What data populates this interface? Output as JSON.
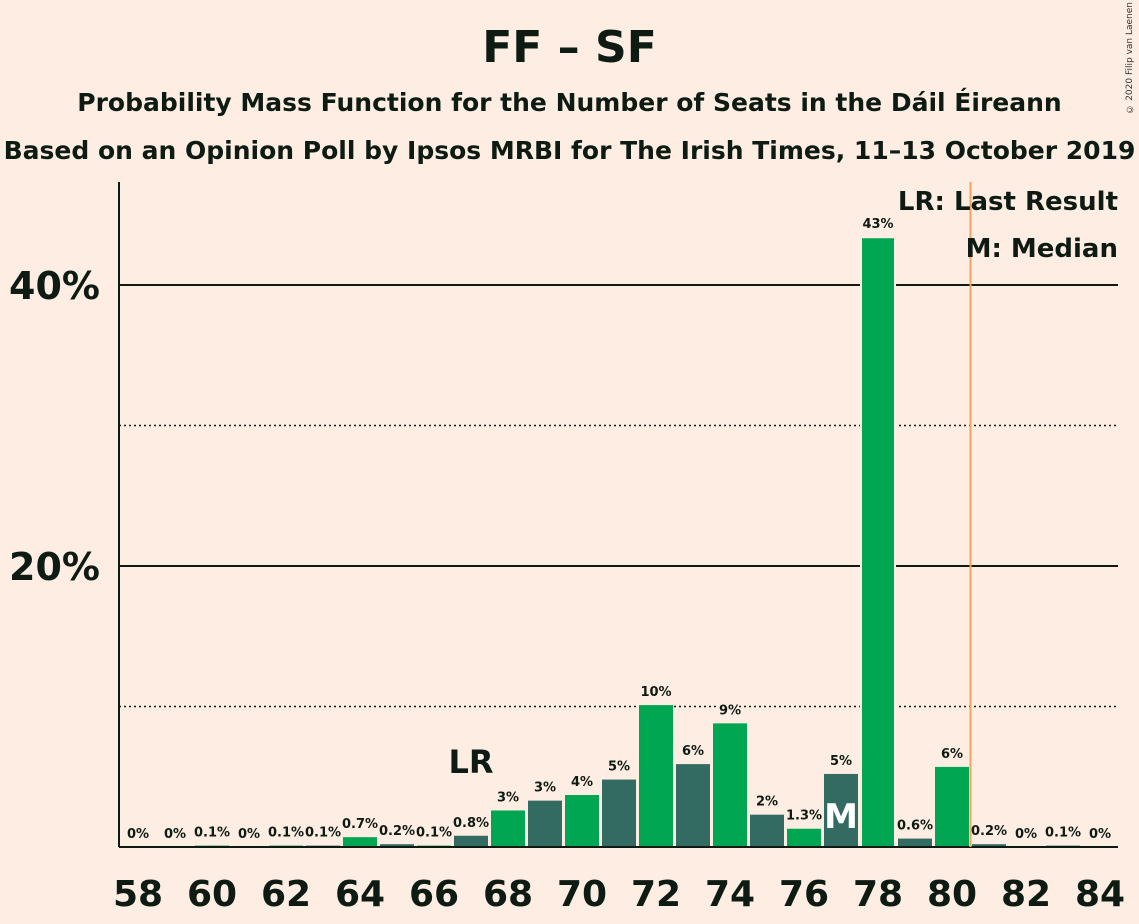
{
  "header": {
    "title": "FF – SF",
    "subtitle1": "Probability Mass Function for the Number of Seats in the Dáil Éireann",
    "subtitle2": "Based on an Opinion Poll by Ipsos MRBI for The Irish Times, 11–13 October 2019",
    "copyright": "© 2020 Filip van Laenen"
  },
  "legend": {
    "last_result": "LR: Last Result",
    "median": "M: Median"
  },
  "colors": {
    "background": "#FEEDE2",
    "bar_green": "#00A651",
    "bar_teal": "#336B63",
    "majority_line": "#F4A460",
    "text": "#0D1B12"
  },
  "chart_data": {
    "type": "bar",
    "x": [
      58,
      59,
      60,
      61,
      62,
      63,
      64,
      65,
      66,
      67,
      68,
      69,
      70,
      71,
      72,
      73,
      74,
      75,
      76,
      77,
      78,
      79,
      80,
      81,
      82,
      83,
      84
    ],
    "values": [
      0,
      0,
      0.1,
      0,
      0.1,
      0.1,
      0.7,
      0.2,
      0.1,
      0.8,
      2.6,
      3.3,
      3.7,
      4.8,
      10.1,
      5.9,
      8.8,
      2.3,
      1.3,
      5.2,
      43.4,
      0.6,
      5.7,
      0.2,
      0,
      0.1,
      0
    ],
    "labels": [
      "0%",
      "0%",
      "0.1%",
      "0%",
      "0.1%",
      "0.1%",
      "0.7%",
      "0.2%",
      "0.1%",
      "0.8%",
      "3%",
      "3%",
      "4%",
      "5%",
      "10%",
      "6%",
      "9%",
      "2%",
      "1.3%",
      "5%",
      "43%",
      "0.6%",
      "6%",
      "0.2%",
      "0%",
      "0.1%",
      "0%"
    ],
    "x_ticks": [
      "58",
      "60",
      "62",
      "64",
      "66",
      "68",
      "70",
      "72",
      "74",
      "76",
      "78",
      "80",
      "82",
      "84"
    ],
    "y_ticks": [
      "20%",
      "40%"
    ],
    "ylim": [
      0,
      47
    ],
    "last_result_seat": 67,
    "last_result_label": "LR",
    "median_seat": 77,
    "median_label": "M",
    "majority_threshold": 80.5,
    "grid": "solid at 20% and 40%, dotted at 10% and 30%"
  }
}
